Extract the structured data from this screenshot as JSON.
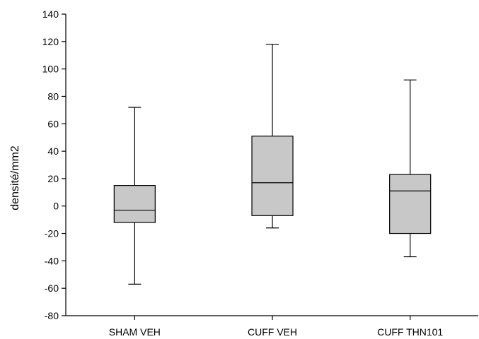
{
  "chart_data": {
    "type": "box",
    "title": "",
    "xlabel": "",
    "ylabel": "densité/mm2",
    "ylim": [
      -80,
      140
    ],
    "yticks": [
      -80,
      -60,
      -40,
      -20,
      0,
      20,
      40,
      60,
      80,
      100,
      120,
      140
    ],
    "ytick_labels": [
      "-80",
      "-60",
      "-40",
      "-20",
      "0",
      "20",
      "40",
      "60",
      "80",
      "100",
      "120",
      "140"
    ],
    "grid": false,
    "box_color": "#c8c8c8",
    "categories": [
      "SHAM VEH",
      "CUFF VEH",
      "CUFF THN101"
    ],
    "series": [
      {
        "category": "SHAM VEH",
        "min": -57,
        "q1": -12,
        "median": -3,
        "q3": 15,
        "max": 72
      },
      {
        "category": "CUFF VEH",
        "min": -16,
        "q1": -7,
        "median": 17,
        "q3": 51,
        "max": 118
      },
      {
        "category": "CUFF THN101",
        "min": -37,
        "q1": -20,
        "median": 11,
        "q3": 23,
        "max": 92
      }
    ]
  }
}
